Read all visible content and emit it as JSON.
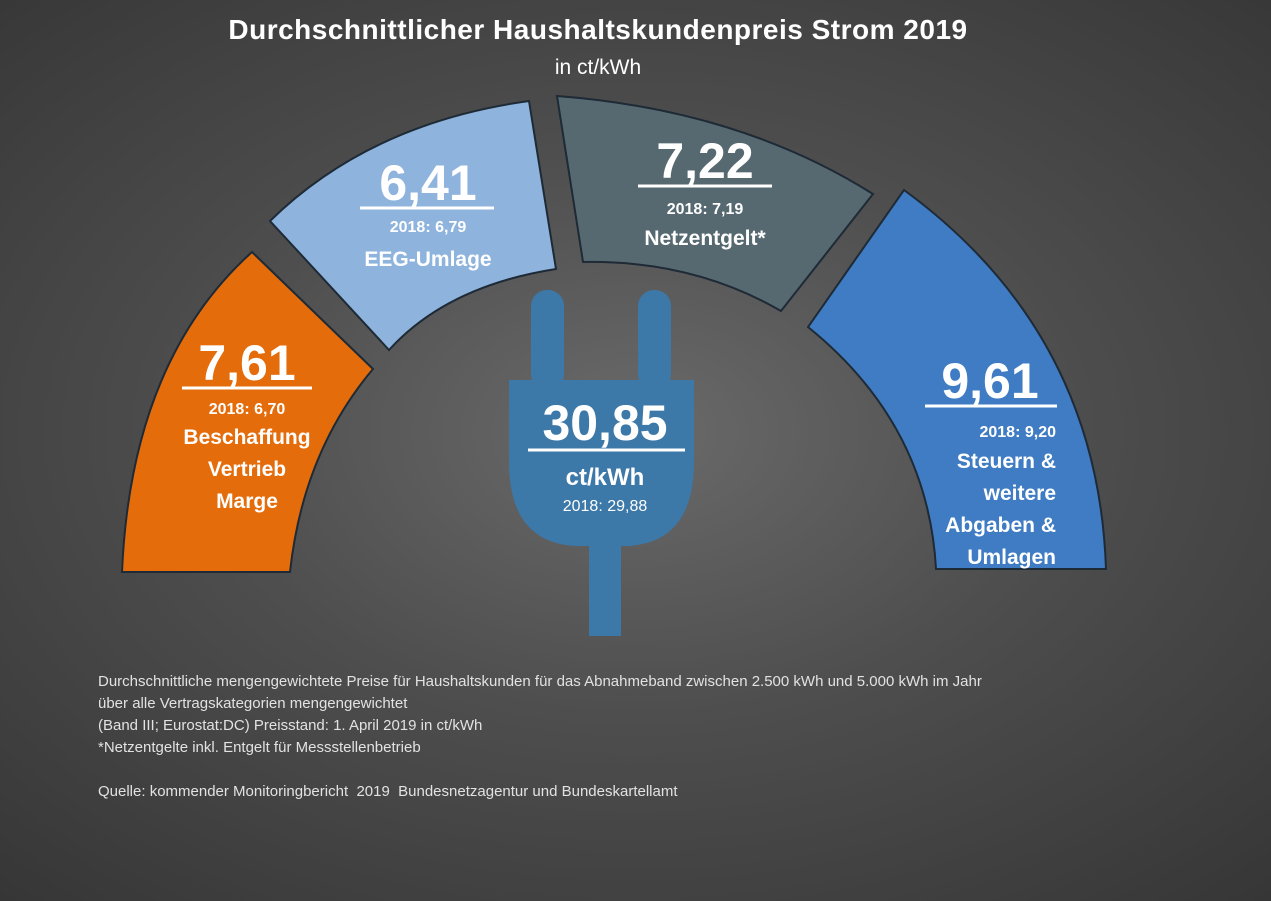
{
  "title": "Durchschnittlicher Haushaltskundenpreis Strom 2019",
  "subtitle": "in ct/kWh",
  "chart_data": {
    "type": "pie",
    "total": {
      "value": "30,85",
      "unit": "ct/kWh",
      "previous": "2018: 29,88"
    },
    "segments": [
      {
        "value": 7.61,
        "value_label": "7,61",
        "previous": "2018: 6,70",
        "label_lines": [
          "Beschaffung",
          "Vertrieb",
          "Marge"
        ],
        "color": "#e46c0a"
      },
      {
        "value": 6.41,
        "value_label": "6,41",
        "previous": "2018: 6,79",
        "label_lines": [
          "EEG-Umlage"
        ],
        "color": "#8eb3dd"
      },
      {
        "value": 7.22,
        "value_label": "7,22",
        "previous": "2018: 7,19",
        "label_lines": [
          "Netzentgelt*"
        ],
        "color": "#566971"
      },
      {
        "value": 9.61,
        "value_label": "9,61",
        "previous": "2018: 9,20",
        "label_lines": [
          "Steuern &",
          "weitere",
          "Abgaben &",
          "Umlagen"
        ],
        "color": "#3f7cc3"
      }
    ]
  },
  "plug_color": "#3c78a8",
  "notes": [
    "Durchschnittliche mengengewichtete Preise für Haushaltskunden für das Abnahmeband zwischen 2.500 kWh und 5.000 kWh im Jahr",
    "über alle Vertragskategorien mengengewichtet",
    "(Band III; Eurostat:DC) Preisstand: 1. April 2019 in ct/kWh",
    "*Netzentgelte inkl. Entgelt für Messstellenbetrieb"
  ],
  "source": "Quelle: kommender Monitoringbericht  2019  Bundesnetzagentur und Bundeskartellamt"
}
